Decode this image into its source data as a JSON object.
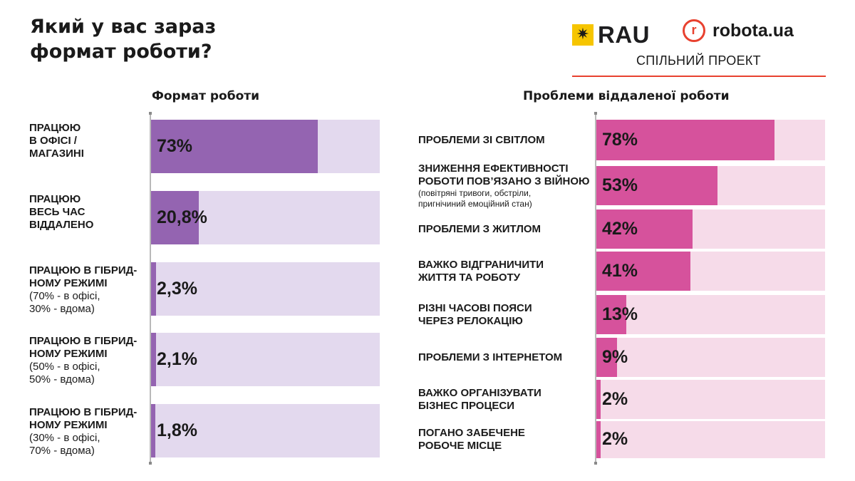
{
  "title": {
    "line1": "Який у вас зараз",
    "line2": "формат роботи?"
  },
  "logos": {
    "rau": "RAU",
    "rau_mark": "✷",
    "robota": "robota.ua",
    "robota_mark": "r",
    "project": "СПІЛЬНИЙ ПРОЕКТ"
  },
  "colors": {
    "left_fg": "#9464b1",
    "left_bg": "#e3d9ee",
    "right_fg": "#d6529c",
    "right_bg": "#f6dbe9",
    "accent": "#e8412f"
  },
  "chart_data": [
    {
      "type": "bar",
      "orientation": "horizontal",
      "title": "Формат роботи",
      "xlim": [
        0,
        100
      ],
      "categories": [
        {
          "line1": "ПРАЦЮЮ",
          "line2": "В ОФІСІ /",
          "line3": "МАГАЗИНІ",
          "sub1": "",
          "sub2": ""
        },
        {
          "line1": "ПРАЦЮЮ",
          "line2": "ВЕСЬ ЧАС",
          "line3": "ВІДДАЛЕНО",
          "sub1": "",
          "sub2": ""
        },
        {
          "line1": "ПРАЦЮЮ В ГІБРИД-",
          "line2": "НОМУ РЕЖИМІ",
          "line3": "",
          "sub1": "(70% - в офісі,",
          "sub2": "30% - вдома)"
        },
        {
          "line1": "ПРАЦЮЮ В ГІБРИД-",
          "line2": "НОМУ РЕЖИМІ",
          "line3": "",
          "sub1": "(50% - в офісі,",
          "sub2": "50% - вдома)"
        },
        {
          "line1": "ПРАЦЮЮ В ГІБРИД-",
          "line2": "НОМУ РЕЖИМІ",
          "line3": "",
          "sub1": "(30% - в офісі,",
          "sub2": "70% - вдома)"
        }
      ],
      "values": [
        73,
        20.8,
        2.3,
        2.1,
        1.8
      ],
      "labels": [
        "73%",
        "20,8%",
        "2,3%",
        "2,1%",
        "1,8%"
      ]
    },
    {
      "type": "bar",
      "orientation": "horizontal",
      "title": "Проблеми віддаленої роботи",
      "xlim": [
        0,
        100
      ],
      "categories": [
        {
          "line1": "ПРОБЛЕМИ ЗІ СВІТЛОМ",
          "line2": "",
          "sub1": "",
          "sub2": ""
        },
        {
          "line1": "ЗНИЖЕННЯ ЕФЕКТИВНОСТІ",
          "line2": "РОБОТИ ПОВ’ЯЗАНО З ВІЙНОЮ",
          "sub1": "(повітряні тривоги, обстріли,",
          "sub2": "пригнічиний емоційний стан)"
        },
        {
          "line1": "ПРОБЛЕМИ З ЖИТЛОМ",
          "line2": "",
          "sub1": "",
          "sub2": ""
        },
        {
          "line1": "ВАЖКО ВІДГРАНИЧИТИ",
          "line2": "ЖИТТЯ ТА РОБОТУ",
          "sub1": "",
          "sub2": ""
        },
        {
          "line1": "РІЗНІ ЧАСОВІ ПОЯСИ",
          "line2": "ЧЕРЕЗ РЕЛОКАЦІЮ",
          "sub1": "",
          "sub2": ""
        },
        {
          "line1": "ПРОБЛЕМИ З ІНТЕРНЕТОМ",
          "line2": "",
          "sub1": "",
          "sub2": ""
        },
        {
          "line1": "ВАЖКО ОРГАНІЗУВАТИ",
          "line2": "БІЗНЕС ПРОЦЕСИ",
          "sub1": "",
          "sub2": ""
        },
        {
          "line1": "ПОГАНО ЗАБЕЧЕНЕ",
          "line2": "РОБОЧЕ МІСЦЕ",
          "sub1": "",
          "sub2": ""
        }
      ],
      "values": [
        78,
        53,
        42,
        41,
        13,
        9,
        2,
        2
      ],
      "labels": [
        "78%",
        "53%",
        "42%",
        "41%",
        "13%",
        "9%",
        "2%",
        "2%"
      ]
    }
  ]
}
